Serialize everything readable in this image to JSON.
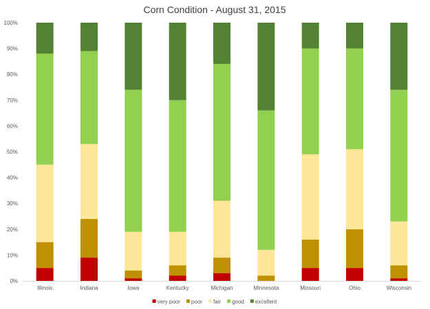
{
  "chart_data": {
    "type": "bar",
    "stacked": true,
    "normalized": true,
    "title": "Corn Condition - August 31, 2015",
    "categories": [
      "Illinois",
      "Indiana",
      "Iowa",
      "Kentucky",
      "Michigan",
      "Minnesota",
      "Missouri",
      "Ohio",
      "Wisconsin"
    ],
    "series": [
      {
        "name": "very poor",
        "color": "#c00000",
        "values": [
          5,
          9,
          1,
          2,
          3,
          0,
          5,
          5,
          1
        ]
      },
      {
        "name": "poor",
        "color": "#bf9000",
        "values": [
          10,
          15,
          3,
          4,
          6,
          2,
          11,
          15,
          5
        ]
      },
      {
        "name": "fair",
        "color": "#ffe699",
        "values": [
          30,
          29,
          15,
          13,
          22,
          10,
          33,
          31,
          17
        ]
      },
      {
        "name": "good",
        "color": "#92d050",
        "values": [
          43,
          36,
          55,
          51,
          53,
          54,
          41,
          39,
          51
        ]
      },
      {
        "name": "excellent",
        "color": "#548235",
        "values": [
          12,
          11,
          26,
          30,
          16,
          34,
          10,
          10,
          26
        ]
      }
    ],
    "y_ticks": [
      "0%",
      "10%",
      "20%",
      "30%",
      "40%",
      "50%",
      "60%",
      "70%",
      "80%",
      "90%",
      "100%"
    ],
    "ylim": [
      0,
      100
    ],
    "grid": false,
    "legend_position": "bottom"
  }
}
